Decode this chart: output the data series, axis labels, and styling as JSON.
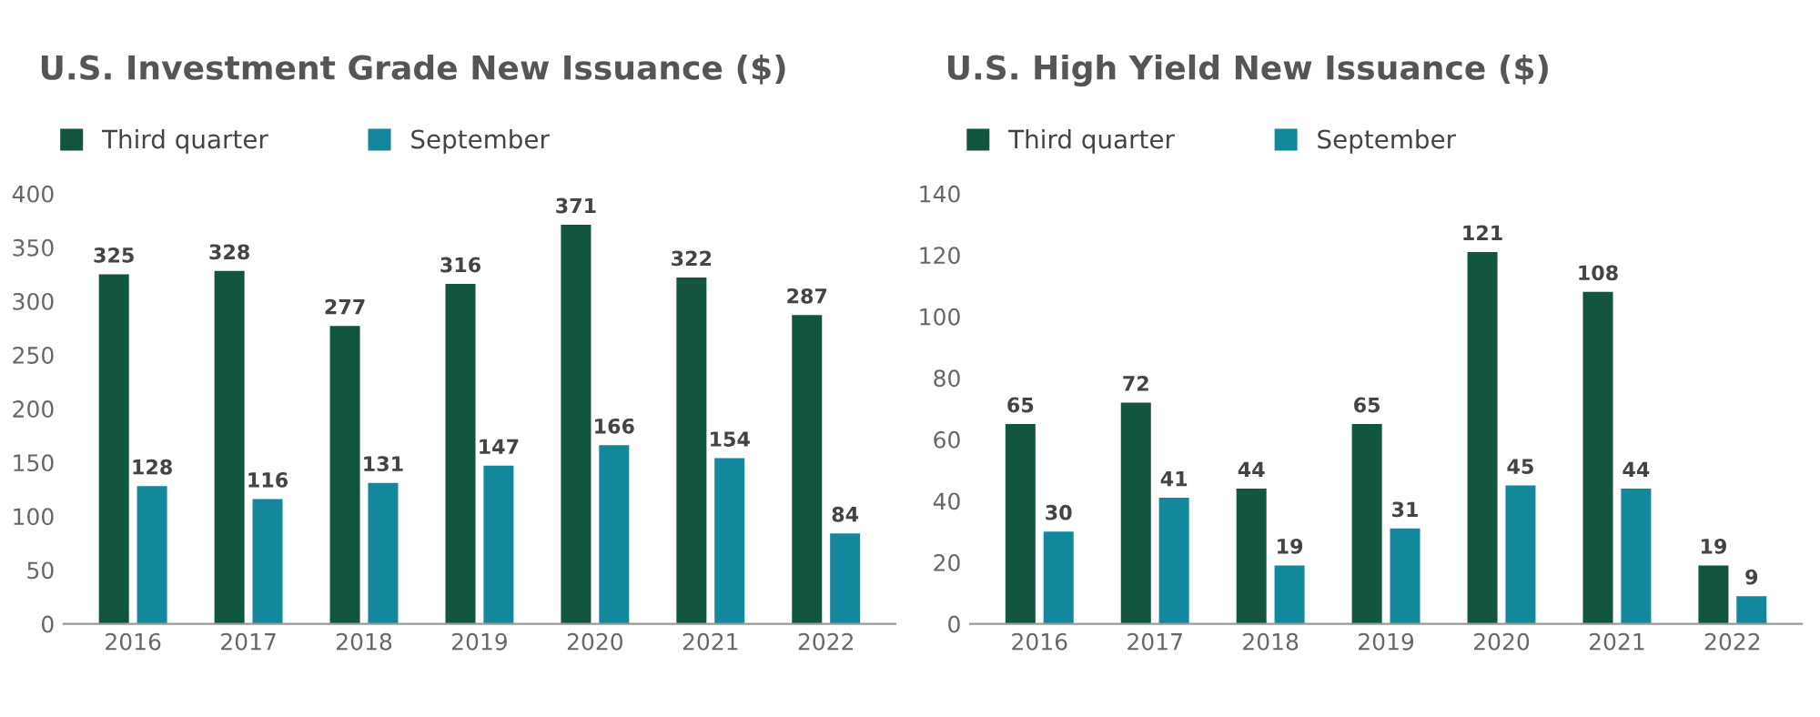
{
  "chart_data": [
    {
      "type": "bar",
      "title": "U.S. Investment Grade New Issuance ($)",
      "categories": [
        "2016",
        "2017",
        "2018",
        "2019",
        "2020",
        "2021",
        "2022"
      ],
      "series": [
        {
          "name": "Third quarter",
          "color": "#12563f",
          "values": [
            325,
            328,
            277,
            316,
            371,
            322,
            287
          ]
        },
        {
          "name": "September",
          "color": "#13879b",
          "values": [
            128,
            116,
            131,
            147,
            166,
            154,
            84
          ]
        }
      ],
      "ylim": [
        0,
        400
      ],
      "yticks": [
        0,
        50,
        100,
        150,
        200,
        250,
        300,
        350,
        400
      ],
      "data_labels": true,
      "legend": "top left",
      "grid": false
    },
    {
      "type": "bar",
      "title": "U.S. High Yield New Issuance ($)",
      "categories": [
        "2016",
        "2017",
        "2018",
        "2019",
        "2020",
        "2021",
        "2022"
      ],
      "series": [
        {
          "name": "Third quarter",
          "color": "#12563f",
          "values": [
            65,
            72,
            44,
            65,
            121,
            108,
            19
          ]
        },
        {
          "name": "September",
          "color": "#13879b",
          "values": [
            30,
            41,
            19,
            31,
            45,
            44,
            9
          ]
        }
      ],
      "ylim": [
        0,
        140
      ],
      "yticks": [
        0,
        20,
        40,
        60,
        80,
        100,
        120,
        140
      ],
      "data_labels": true,
      "legend": "top left",
      "grid": false
    }
  ]
}
